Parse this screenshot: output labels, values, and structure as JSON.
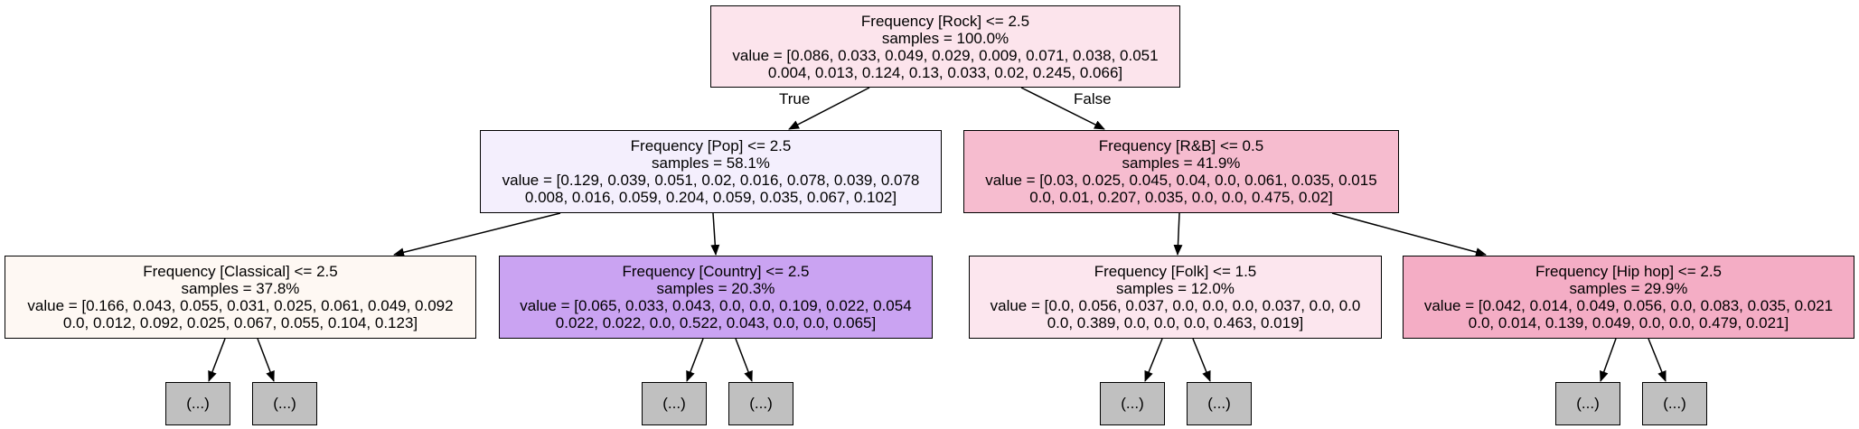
{
  "root": {
    "line1": "Frequency [Rock] <= 2.5",
    "line2": "samples = 100.0%",
    "line3": "value = [0.086, 0.033, 0.049, 0.029, 0.009, 0.071, 0.038, 0.051",
    "line4": "0.004, 0.013, 0.124, 0.13, 0.033, 0.02, 0.245, 0.066]",
    "color": "#fce4ec"
  },
  "edge_labels": {
    "true": "True",
    "false": "False"
  },
  "pop": {
    "line1": "Frequency [Pop] <= 2.5",
    "line2": "samples = 58.1%",
    "line3": "value = [0.129, 0.039, 0.051, 0.02, 0.016, 0.078, 0.039, 0.078",
    "line4": "0.008, 0.016, 0.059, 0.204, 0.059, 0.035, 0.067, 0.102]",
    "color": "#f4effd"
  },
  "rnb": {
    "line1": "Frequency [R&B] <= 0.5",
    "line2": "samples = 41.9%",
    "line3": "value = [0.03, 0.025, 0.045, 0.04, 0.0, 0.061, 0.035, 0.015",
    "line4": "0.0, 0.01, 0.207, 0.035, 0.0, 0.0, 0.475, 0.02]",
    "color": "#f6bccf"
  },
  "classical": {
    "line1": "Frequency [Classical] <= 2.5",
    "line2": "samples = 37.8%",
    "line3": "value = [0.166, 0.043, 0.055, 0.031, 0.025, 0.061, 0.049, 0.092",
    "line4": "0.0, 0.012, 0.092, 0.025, 0.067, 0.055, 0.104, 0.123]",
    "color": "#fef8f3"
  },
  "country": {
    "line1": "Frequency [Country] <= 2.5",
    "line2": "samples = 20.3%",
    "line3": "value = [0.065, 0.033, 0.043, 0.0, 0.0, 0.109, 0.022, 0.054",
    "line4": "0.022, 0.022, 0.0, 0.522, 0.043, 0.0, 0.0, 0.065]",
    "color": "#caa3f2"
  },
  "folk": {
    "line1": "Frequency [Folk] <= 1.5",
    "line2": "samples = 12.0%",
    "line3": "value = [0.0, 0.056, 0.037, 0.0, 0.0, 0.0, 0.037, 0.0, 0.0",
    "line4": "0.0, 0.389, 0.0, 0.0, 0.0, 0.463, 0.019]",
    "color": "#fce6ee"
  },
  "hiphop": {
    "line1": "Frequency [Hip hop] <= 2.5",
    "line2": "samples = 29.9%",
    "line3": "value = [0.042, 0.014, 0.049, 0.056, 0.0, 0.083, 0.035, 0.021",
    "line4": "0.0, 0.014, 0.139, 0.049, 0.0, 0.0, 0.479, 0.021]",
    "color": "#f4adc5"
  },
  "ellipsis_text": "(...)",
  "ellipsis_color": "#c0c0c0"
}
